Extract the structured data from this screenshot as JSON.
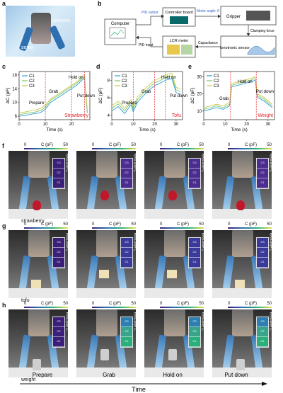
{
  "panels": {
    "a": "a",
    "b": "b",
    "c": "c",
    "d": "d",
    "e": "e",
    "f": "f",
    "g": "g",
    "h": "h"
  },
  "photo_a": {
    "label_sensors": "sensors",
    "label_servo": "servo"
  },
  "diagram_b": {
    "computer": "Computer",
    "controller": "Controller board",
    "gripper": "Gripper",
    "lcr": "LCR meter",
    "ionotronic": "Ionotronic sensor",
    "pid_output": "PID output",
    "pid_input": "PID input",
    "motor_angle": "Motor angle: θ",
    "clamping_force": "Clamping force",
    "capacitance": "Capacitance"
  },
  "charts": [
    {
      "id": "c",
      "ylabel": "ΔC (pF)",
      "xlabel": "Time (s)",
      "object": "Strawberry",
      "object_color": "#e0282e",
      "yticks": [
        "6",
        "10",
        "14",
        "18"
      ],
      "xticks": [
        "0",
        "10",
        "20"
      ],
      "phases": [
        "Prepare",
        "Grab",
        "Hold on",
        "Put down"
      ],
      "legend": [
        "C1",
        "C2",
        "C3"
      ],
      "chart_data": {
        "type": "line",
        "x": [
          0,
          2,
          4,
          6,
          8,
          10,
          12,
          14,
          16,
          18,
          20,
          22,
          24,
          25,
          26
        ],
        "series": [
          {
            "name": "C1",
            "values": [
              6,
              6.2,
              6.5,
              6.8,
              7,
              8,
              10,
              11,
              12,
              13,
              14,
              15,
              16.5,
              17,
              7
            ]
          },
          {
            "name": "C2",
            "values": [
              6.5,
              6.7,
              7,
              7.2,
              7.6,
              8.6,
              10.6,
              11.6,
              12.6,
              13.6,
              14.6,
              15.6,
              17,
              17.5,
              7.5
            ]
          },
          {
            "name": "C3",
            "values": [
              7,
              7.2,
              7.5,
              7.8,
              8.2,
              9.2,
              11,
              12,
              13,
              14,
              15,
              16,
              17.5,
              18,
              8
            ]
          }
        ],
        "xlim": [
          0,
          27
        ],
        "ylim": [
          5,
          19
        ]
      }
    },
    {
      "id": "d",
      "ylabel": "ΔC (pF)",
      "xlabel": "Time (s)",
      "object": "Tofu",
      "object_color": "#e0282e",
      "yticks": [
        "4",
        "6",
        "8"
      ],
      "xticks": [
        "0",
        "10",
        "20",
        "30"
      ],
      "phases": [
        "Prepare",
        "Grab",
        "Hold on",
        "Put down"
      ],
      "legend": [
        "C1",
        "C2",
        "C3"
      ],
      "chart_data": {
        "type": "line",
        "x": [
          0,
          3,
          6,
          9,
          10,
          12,
          15,
          18,
          20,
          22,
          25,
          28,
          30,
          32
        ],
        "series": [
          {
            "name": "C1",
            "values": [
              4.5,
              5,
              4.2,
              5.2,
              4.4,
              5.5,
              6.3,
              7,
              7.4,
              7.6,
              8,
              8.2,
              6.6,
              6.4
            ]
          },
          {
            "name": "C2",
            "values": [
              4.8,
              5.3,
              4.5,
              5.5,
              4.7,
              5.8,
              6.6,
              7.3,
              7.7,
              7.9,
              8.3,
              8.5,
              6.9,
              6.7
            ]
          },
          {
            "name": "C3",
            "values": [
              5.1,
              5.6,
              4.8,
              5.8,
              5,
              6.1,
              6.9,
              7.6,
              8,
              8.2,
              8.6,
              8.8,
              7.2,
              7
            ]
          }
        ],
        "xlim": [
          0,
          33
        ],
        "ylim": [
          3.5,
          9
        ]
      }
    },
    {
      "id": "e",
      "ylabel": "ΔC (pF)",
      "xlabel": "Time (s)",
      "object": "Weight",
      "object_color": "#e0282e",
      "yticks": [
        "10",
        "20",
        "30"
      ],
      "xticks": [
        "0",
        "10",
        "20",
        "30"
      ],
      "phases": [
        "Grab",
        "Hold on",
        "Put down"
      ],
      "legend": [
        "C1",
        "C2",
        "C3"
      ],
      "chart_data": {
        "type": "line",
        "x": [
          0,
          3,
          6,
          9,
          12,
          13,
          16,
          19,
          22,
          24,
          25,
          28,
          30,
          32
        ],
        "series": [
          {
            "name": "C1",
            "values": [
              10,
              11,
              12,
              11,
              13,
              24,
              25,
              26,
              27,
              28,
              18,
              16,
              14,
              12
            ]
          },
          {
            "name": "C2",
            "values": [
              11,
              12,
              13,
              12,
              14,
              25,
              26,
              27,
              28,
              29,
              19,
              17,
              15,
              13
            ]
          },
          {
            "name": "C3",
            "values": [
              12,
              13,
              14,
              13,
              15,
              26,
              27,
              28,
              29,
              30,
              20,
              18,
              16,
              14
            ]
          }
        ],
        "xlim": [
          0,
          33
        ],
        "ylim": [
          5,
          33
        ]
      }
    }
  ],
  "colorbar": {
    "title": "C (pF)",
    "min": "0",
    "max": "50",
    "side_label": "Real-time C",
    "cells": [
      "C1",
      "C2",
      "C3"
    ]
  },
  "row_labels": {
    "f": "strawberry",
    "g": "tofu",
    "h": "weight"
  },
  "time_axis": {
    "phases": [
      "Prepare",
      "Grab",
      "Hold on",
      "Put down"
    ],
    "label": "Time"
  }
}
